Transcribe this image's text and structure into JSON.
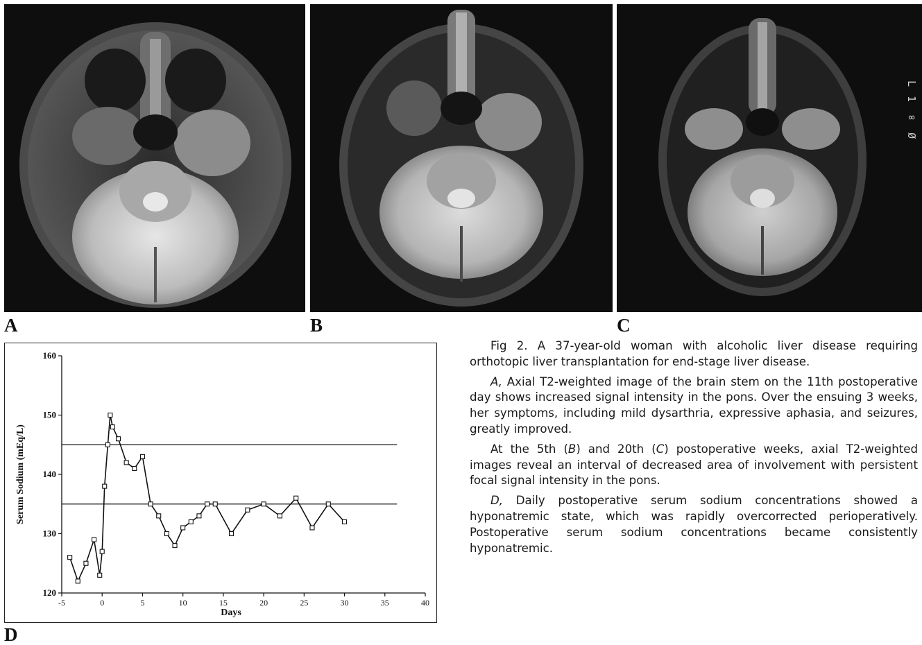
{
  "figure": {
    "panels": [
      {
        "label": "A",
        "description_icon": "mri-axial-t2-brainstem"
      },
      {
        "label": "B",
        "description_icon": "mri-axial-t2-brainstem"
      },
      {
        "label": "C",
        "description_icon": "mri-axial-t2-brainstem"
      }
    ],
    "chart_panel_label": "D",
    "scale_text": "L 1 ∞ Ø"
  },
  "caption": {
    "p1_lead": "Fig 2.",
    "p1_text": " A 37-year-old woman with alcoholic liver disease requiring orthotopic liver transplantation for end-stage liver disease.",
    "p2_ref": "A,",
    "p2_text": " Axial T2-weighted image of the brain stem on the 11th postoperative day shows increased signal intensity in the pons. Over the ensuing 3 weeks, her symptoms, including mild dysarthria, expressive aphasia, and seizures, greatly improved.",
    "p3_a": "At the 5th (",
    "p3_ref1": "B",
    "p3_b": ") and 20th (",
    "p3_ref2": "C",
    "p3_c": ") postoperative weeks, axial T2-weighted images reveal an interval of decreased area of involvement with persistent focal signal intensity in the pons.",
    "p4_ref": "D,",
    "p4_text": " Daily postoperative serum sodium concentrations showed a hyponatremic state, which was rapidly overcorrected perioperatively. Postoperative serum sodium concentrations became consistently hyponatremic."
  },
  "chart_data": {
    "type": "line",
    "xlabel": "Days",
    "ylabel": "Serum Sodium (mEq/L)",
    "xlim": [
      -5,
      40
    ],
    "ylim": [
      120,
      160
    ],
    "xticks": [
      -5,
      0,
      5,
      10,
      15,
      20,
      25,
      30,
      35,
      40
    ],
    "yticks": [
      120,
      130,
      140,
      150,
      160
    ],
    "reference_lines": [
      145,
      135
    ],
    "series": [
      {
        "marker": "square",
        "x": [
          -4,
          -3,
          -2,
          -1,
          -0.3,
          0,
          0.3,
          0.7,
          1,
          1.3,
          2,
          3,
          4,
          5,
          6,
          7,
          8,
          9,
          10,
          11,
          12,
          13,
          14,
          16,
          18,
          20,
          22,
          24,
          26,
          28,
          30
        ],
        "y": [
          126,
          122,
          125,
          129,
          123,
          127,
          138,
          145,
          150,
          148,
          146,
          142,
          141,
          143,
          135,
          133,
          130,
          128,
          131,
          132,
          133,
          135,
          135,
          130,
          134,
          135,
          133,
          136,
          131,
          135,
          132
        ]
      }
    ]
  }
}
